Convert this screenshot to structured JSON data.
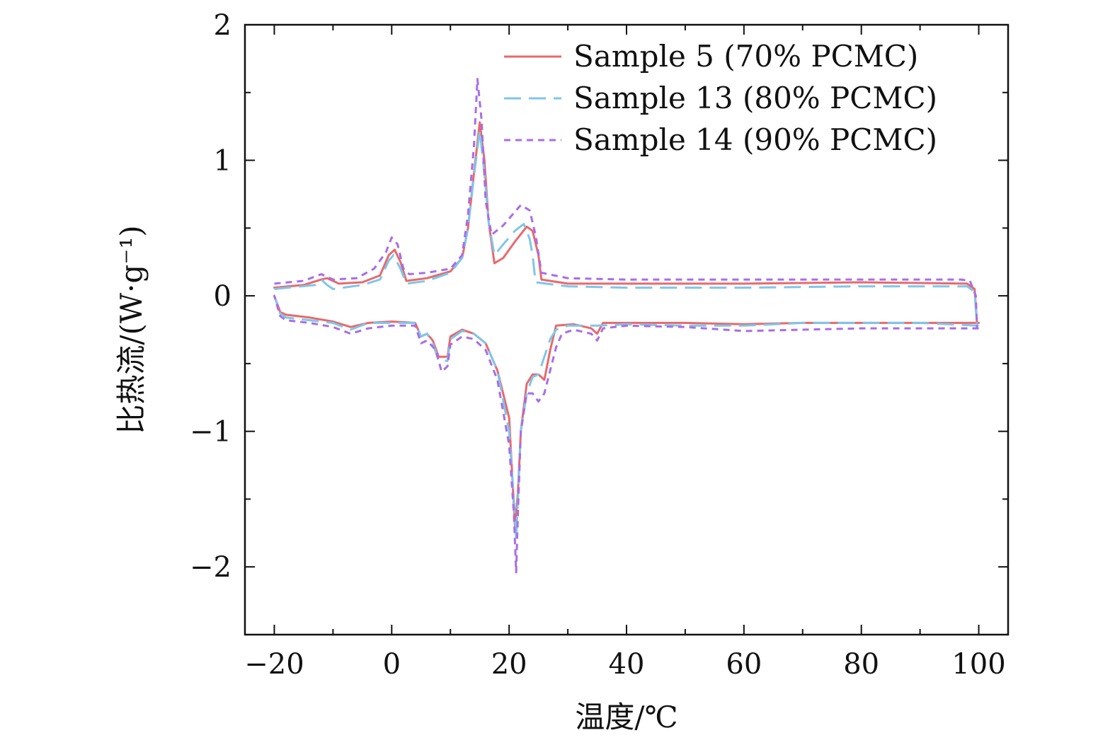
{
  "chart_data": {
    "type": "line",
    "title": "",
    "xlabel": "温度/℃",
    "ylabel": "比热流/(W·g⁻¹)",
    "xlim": [
      -25,
      105
    ],
    "ylim": [
      -2.5,
      2
    ],
    "x_ticks": [
      -20,
      0,
      20,
      40,
      60,
      80,
      100
    ],
    "x_tick_labels": [
      "−20",
      "0",
      "20",
      "40",
      "60",
      "80",
      "100"
    ],
    "y_ticks": [
      -2,
      -1,
      0,
      1,
      2
    ],
    "y_tick_labels": [
      "−2",
      "−1",
      "0",
      "1",
      "2"
    ],
    "grid": false,
    "legend_position": "top-right",
    "series": [
      {
        "name": "Sample 5 (70% PCMC)",
        "color": "#e8696b",
        "style": "solid",
        "segments": [
          [
            [
              -20,
              0.06
            ],
            [
              -15,
              0.08
            ],
            [
              -12,
              0.12
            ],
            [
              -11,
              0.13
            ],
            [
              -10,
              0.11
            ],
            [
              -9,
              0.09
            ],
            [
              -5,
              0.1
            ],
            [
              -2,
              0.15
            ],
            [
              -0.5,
              0.3
            ],
            [
              0.5,
              0.34
            ],
            [
              1.5,
              0.25
            ],
            [
              2.5,
              0.11
            ],
            [
              6,
              0.13
            ],
            [
              10,
              0.18
            ],
            [
              12,
              0.28
            ],
            [
              13,
              0.5
            ],
            [
              14,
              0.9
            ],
            [
              15,
              1.28
            ],
            [
              15.8,
              1.0
            ],
            [
              16.5,
              0.55
            ],
            [
              17.5,
              0.24
            ],
            [
              19,
              0.28
            ],
            [
              21,
              0.4
            ],
            [
              23,
              0.51
            ],
            [
              24,
              0.48
            ],
            [
              25,
              0.3
            ],
            [
              25.5,
              0.12
            ],
            [
              30,
              0.09
            ],
            [
              40,
              0.09
            ],
            [
              60,
              0.09
            ],
            [
              80,
              0.1
            ],
            [
              98,
              0.09
            ],
            [
              99.3,
              0.05
            ],
            [
              99.7,
              -0.2
            ]
          ],
          [
            [
              100,
              -0.2
            ],
            [
              90,
              -0.2
            ],
            [
              80,
              -0.2
            ],
            [
              70,
              -0.2
            ],
            [
              60,
              -0.21
            ],
            [
              50,
              -0.2
            ],
            [
              40,
              -0.2
            ],
            [
              36,
              -0.2
            ],
            [
              35,
              -0.28
            ],
            [
              34,
              -0.24
            ],
            [
              31,
              -0.21
            ],
            [
              28,
              -0.22
            ],
            [
              27,
              -0.4
            ],
            [
              26,
              -0.62
            ],
            [
              25,
              -0.58
            ],
            [
              24,
              -0.58
            ],
            [
              23,
              -0.65
            ],
            [
              22,
              -1.0
            ],
            [
              21.5,
              -1.45
            ],
            [
              21,
              -1.7
            ],
            [
              20.5,
              -1.3
            ],
            [
              20,
              -0.9
            ],
            [
              18,
              -0.55
            ],
            [
              16,
              -0.35
            ],
            [
              14,
              -0.28
            ],
            [
              12,
              -0.25
            ],
            [
              10,
              -0.3
            ],
            [
              9.5,
              -0.45
            ],
            [
              8,
              -0.45
            ],
            [
              7,
              -0.33
            ],
            [
              6,
              -0.28
            ],
            [
              5,
              -0.3
            ],
            [
              4,
              -0.2
            ],
            [
              0,
              -0.19
            ],
            [
              -4,
              -0.2
            ],
            [
              -7,
              -0.23
            ],
            [
              -10,
              -0.19
            ],
            [
              -14,
              -0.16
            ],
            [
              -18,
              -0.14
            ],
            [
              -19,
              -0.12
            ],
            [
              -20,
              0.0
            ]
          ]
        ]
      },
      {
        "name": "Sample 13 (80% PCMC)",
        "color": "#7fc6e8",
        "style": "dashed",
        "segments": [
          [
            [
              -20,
              0.05
            ],
            [
              -13,
              0.08
            ],
            [
              -12,
              0.12
            ],
            [
              -11,
              0.08
            ],
            [
              -10,
              0.05
            ],
            [
              -5,
              0.08
            ],
            [
              -2,
              0.12
            ],
            [
              -0.5,
              0.26
            ],
            [
              0.3,
              0.3
            ],
            [
              1.5,
              0.2
            ],
            [
              2.5,
              0.09
            ],
            [
              6,
              0.11
            ],
            [
              10,
              0.17
            ],
            [
              12,
              0.28
            ],
            [
              13,
              0.5
            ],
            [
              14,
              0.88
            ],
            [
              15,
              1.22
            ],
            [
              15.8,
              0.9
            ],
            [
              16.5,
              0.55
            ],
            [
              17.5,
              0.3
            ],
            [
              19,
              0.38
            ],
            [
              21,
              0.48
            ],
            [
              22.5,
              0.53
            ],
            [
              23.5,
              0.42
            ],
            [
              24,
              0.3
            ],
            [
              24.5,
              0.1
            ],
            [
              30,
              0.07
            ],
            [
              40,
              0.06
            ],
            [
              60,
              0.06
            ],
            [
              80,
              0.07
            ],
            [
              98,
              0.07
            ],
            [
              99.3,
              0.03
            ],
            [
              99.7,
              -0.22
            ]
          ],
          [
            [
              100,
              -0.22
            ],
            [
              90,
              -0.2
            ],
            [
              80,
              -0.2
            ],
            [
              70,
              -0.2
            ],
            [
              60,
              -0.22
            ],
            [
              50,
              -0.22
            ],
            [
              40,
              -0.21
            ],
            [
              35,
              -0.22
            ],
            [
              30,
              -0.22
            ],
            [
              28,
              -0.25
            ],
            [
              27,
              -0.32
            ],
            [
              26,
              -0.45
            ],
            [
              25,
              -0.58
            ],
            [
              24,
              -0.6
            ],
            [
              23,
              -0.72
            ],
            [
              22,
              -1.0
            ],
            [
              21.5,
              -1.5
            ],
            [
              21.2,
              -1.8
            ],
            [
              20.8,
              -1.5
            ],
            [
              20,
              -1.0
            ],
            [
              18,
              -0.55
            ],
            [
              16,
              -0.35
            ],
            [
              14,
              -0.28
            ],
            [
              12,
              -0.26
            ],
            [
              10,
              -0.32
            ],
            [
              9.5,
              -0.48
            ],
            [
              8,
              -0.48
            ],
            [
              7,
              -0.35
            ],
            [
              6,
              -0.28
            ],
            [
              5,
              -0.3
            ],
            [
              4,
              -0.2
            ],
            [
              0,
              -0.2
            ],
            [
              -4,
              -0.2
            ],
            [
              -7,
              -0.25
            ],
            [
              -10,
              -0.2
            ],
            [
              -14,
              -0.18
            ],
            [
              -18,
              -0.16
            ],
            [
              -19,
              -0.13
            ],
            [
              -20,
              0.0
            ]
          ]
        ]
      },
      {
        "name": "Sample 14 (90% PCMC)",
        "color": "#a86de8",
        "style": "dotted",
        "segments": [
          [
            [
              -20,
              0.09
            ],
            [
              -15,
              0.11
            ],
            [
              -12,
              0.16
            ],
            [
              -11,
              0.14
            ],
            [
              -10,
              0.12
            ],
            [
              -6,
              0.13
            ],
            [
              -3,
              0.2
            ],
            [
              -1,
              0.32
            ],
            [
              0,
              0.43
            ],
            [
              1,
              0.38
            ],
            [
              2,
              0.2
            ],
            [
              3,
              0.16
            ],
            [
              6,
              0.17
            ],
            [
              10,
              0.2
            ],
            [
              12,
              0.3
            ],
            [
              13,
              0.6
            ],
            [
              14,
              1.1
            ],
            [
              14.6,
              1.6
            ],
            [
              15.3,
              1.3
            ],
            [
              16,
              0.7
            ],
            [
              17,
              0.45
            ],
            [
              19,
              0.52
            ],
            [
              21,
              0.62
            ],
            [
              22,
              0.67
            ],
            [
              23.5,
              0.63
            ],
            [
              24.5,
              0.45
            ],
            [
              25.5,
              0.17
            ],
            [
              30,
              0.13
            ],
            [
              40,
              0.12
            ],
            [
              60,
              0.12
            ],
            [
              80,
              0.12
            ],
            [
              97,
              0.12
            ],
            [
              98.5,
              0.11
            ],
            [
              99.5,
              0.0
            ],
            [
              99.7,
              -0.24
            ]
          ],
          [
            [
              100,
              -0.24
            ],
            [
              90,
              -0.24
            ],
            [
              80,
              -0.24
            ],
            [
              70,
              -0.25
            ],
            [
              60,
              -0.26
            ],
            [
              50,
              -0.23
            ],
            [
              40,
              -0.22
            ],
            [
              36,
              -0.24
            ],
            [
              35,
              -0.33
            ],
            [
              34,
              -0.28
            ],
            [
              31,
              -0.25
            ],
            [
              29,
              -0.28
            ],
            [
              28,
              -0.38
            ],
            [
              27,
              -0.55
            ],
            [
              26,
              -0.72
            ],
            [
              25,
              -0.78
            ],
            [
              24,
              -0.72
            ],
            [
              23,
              -0.72
            ],
            [
              22,
              -1.0
            ],
            [
              21.5,
              -1.6
            ],
            [
              21.2,
              -2.04
            ],
            [
              20.8,
              -1.6
            ],
            [
              20,
              -1.1
            ],
            [
              18,
              -0.62
            ],
            [
              16,
              -0.4
            ],
            [
              14,
              -0.32
            ],
            [
              12,
              -0.3
            ],
            [
              10,
              -0.36
            ],
            [
              9.5,
              -0.52
            ],
            [
              8.5,
              -0.56
            ],
            [
              7.5,
              -0.4
            ],
            [
              6,
              -0.33
            ],
            [
              5,
              -0.35
            ],
            [
              4,
              -0.22
            ],
            [
              0,
              -0.22
            ],
            [
              -4,
              -0.24
            ],
            [
              -7,
              -0.28
            ],
            [
              -10,
              -0.23
            ],
            [
              -14,
              -0.2
            ],
            [
              -18,
              -0.18
            ],
            [
              -19,
              -0.15
            ],
            [
              -20,
              0.0
            ]
          ]
        ]
      }
    ]
  }
}
